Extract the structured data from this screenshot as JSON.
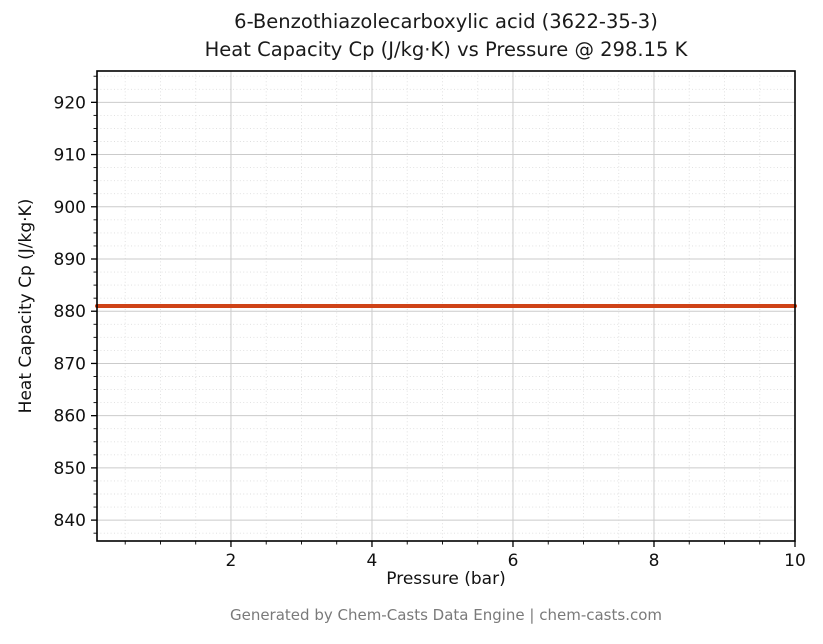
{
  "header": {
    "title_line1": "6-Benzothiazolecarboxylic acid (3622-35-3)",
    "title_line2": "Heat Capacity Cp (J/kg·K) vs Pressure @ 298.15 K"
  },
  "footer": {
    "text": "Generated by Chem-Casts Data Engine | chem-casts.com"
  },
  "chart_data": {
    "type": "line",
    "title": "6-Benzothiazolecarboxylic acid (3622-35-3) Heat Capacity Cp (J/kg·K) vs Pressure @ 298.15 K",
    "xlabel": "Pressure (bar)",
    "ylabel": "Heat Capacity Cp (J/kg·K)",
    "xlim": [
      0.1,
      10
    ],
    "ylim": [
      836,
      926
    ],
    "xticks": [
      2,
      4,
      6,
      8,
      10
    ],
    "yticks": [
      840,
      850,
      860,
      870,
      880,
      890,
      900,
      910,
      920
    ],
    "minor_x_step": 0.5,
    "minor_y_step": 2.5,
    "grid": true,
    "legend": "none",
    "colors": {
      "line": "#cf4318",
      "grid_major": "#cbcbcb",
      "grid_minor": "#dedede",
      "spine": "#000000"
    },
    "series": [
      {
        "name": "Cp @ 298.15 K",
        "color": "#cf4318",
        "x": [
          0.1,
          10
        ],
        "y": [
          881,
          881
        ]
      }
    ]
  }
}
